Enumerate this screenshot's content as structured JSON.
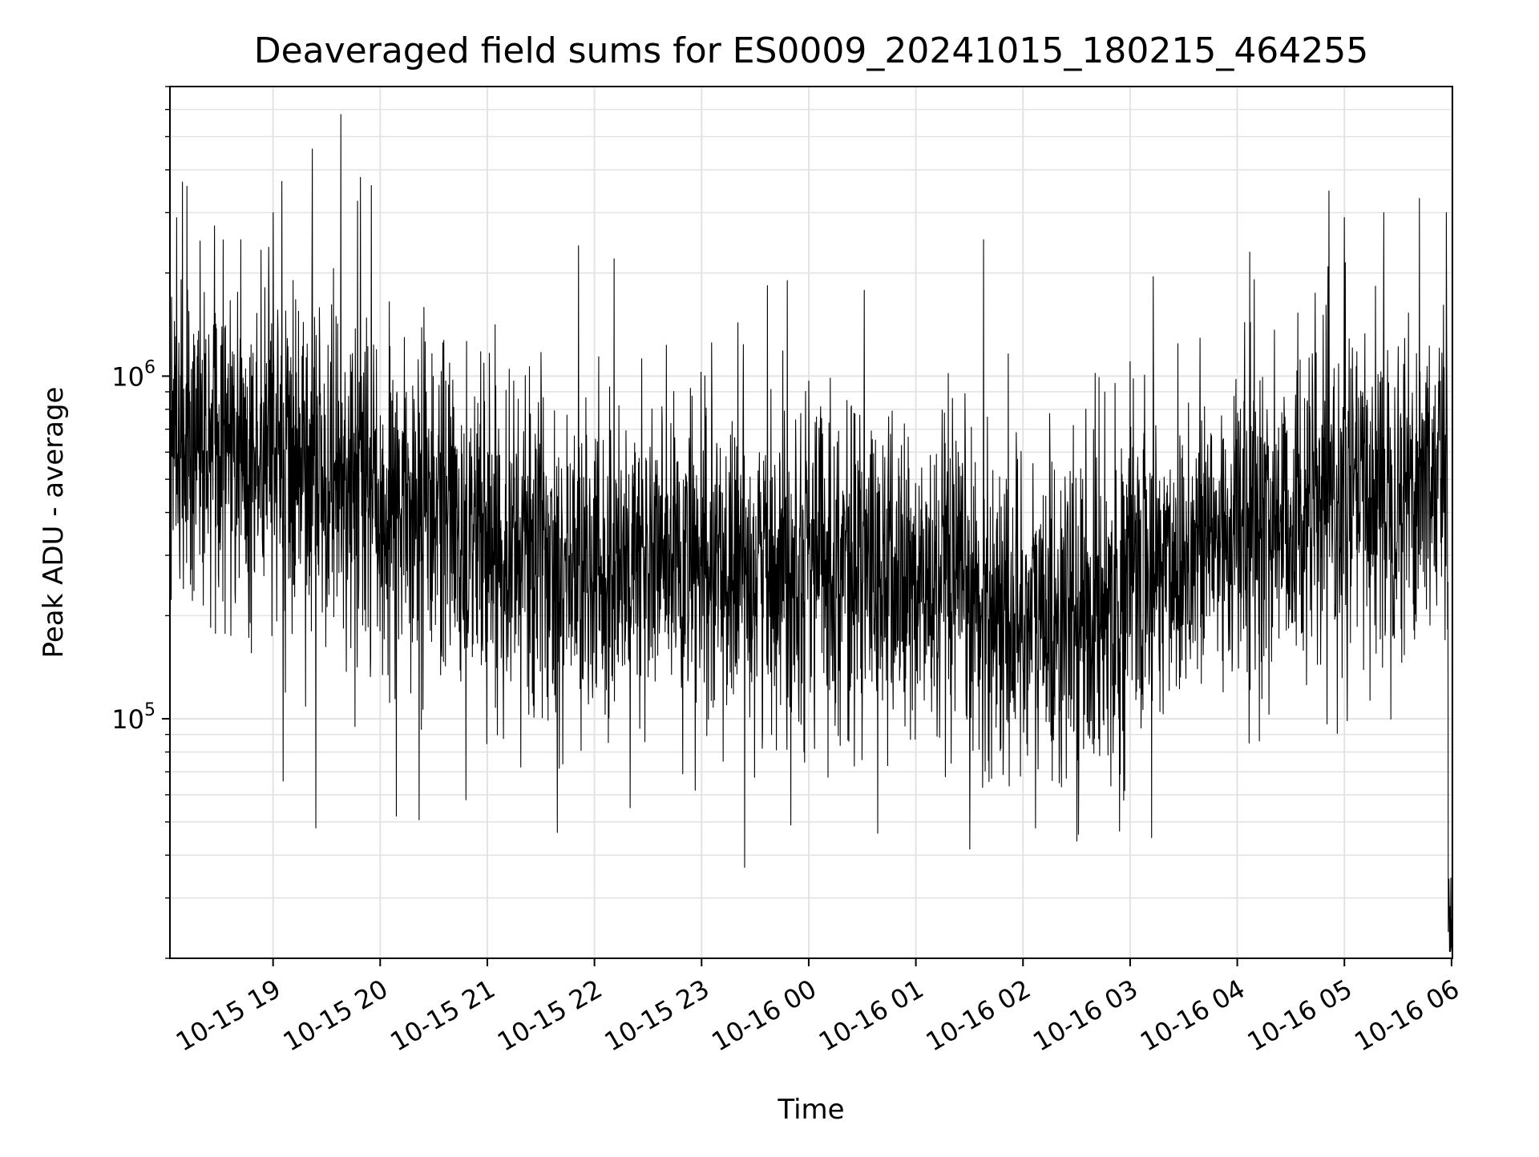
{
  "chart_data": {
    "type": "line",
    "title": "Deaveraged field sums for ES0009_20241015_180215_464255",
    "xlabel": "Time",
    "ylabel": "Peak ADU - average",
    "x_axis": {
      "kind": "datetime",
      "min": "2024-10-15T18:02:15",
      "max": "2024-10-16T06:00:30",
      "ticks": [
        {
          "value": "2024-10-15T19:00:00",
          "label": "10-15 19"
        },
        {
          "value": "2024-10-15T20:00:00",
          "label": "10-15 20"
        },
        {
          "value": "2024-10-15T21:00:00",
          "label": "10-15 21"
        },
        {
          "value": "2024-10-15T22:00:00",
          "label": "10-15 22"
        },
        {
          "value": "2024-10-15T23:00:00",
          "label": "10-15 23"
        },
        {
          "value": "2024-10-16T00:00:00",
          "label": "10-16 00"
        },
        {
          "value": "2024-10-16T01:00:00",
          "label": "10-16 01"
        },
        {
          "value": "2024-10-16T02:00:00",
          "label": "10-16 02"
        },
        {
          "value": "2024-10-16T03:00:00",
          "label": "10-16 03"
        },
        {
          "value": "2024-10-16T04:00:00",
          "label": "10-16 04"
        },
        {
          "value": "2024-10-16T05:00:00",
          "label": "10-16 05"
        },
        {
          "value": "2024-10-16T06:00:00",
          "label": "10-16 06"
        }
      ]
    },
    "y_axis": {
      "scale": "log",
      "min": 20000,
      "max": 7000000,
      "ticks": [
        {
          "value": 100000,
          "base": "10",
          "exp": "5"
        },
        {
          "value": 1000000,
          "base": "10",
          "exp": "6"
        }
      ]
    },
    "grid": true,
    "line_color": "#000000",
    "series": [
      {
        "trend": [
          [
            "2024-10-15T18:02:15",
            700000
          ],
          [
            "2024-10-15T18:30:00",
            620000
          ],
          [
            "2024-10-15T19:00:00",
            560000
          ],
          [
            "2024-10-15T19:30:00",
            520000
          ],
          [
            "2024-10-15T20:00:00",
            420000
          ],
          [
            "2024-10-15T21:00:00",
            350000
          ],
          [
            "2024-10-15T22:00:00",
            260000
          ],
          [
            "2024-10-15T22:30:00",
            300000
          ],
          [
            "2024-10-15T23:00:00",
            260000
          ],
          [
            "2024-10-16T00:00:00",
            310000
          ],
          [
            "2024-10-16T01:00:00",
            240000
          ],
          [
            "2024-10-16T02:00:00",
            200000
          ],
          [
            "2024-10-16T02:30:00",
            190000
          ],
          [
            "2024-10-16T03:00:00",
            260000
          ],
          [
            "2024-10-16T04:00:00",
            360000
          ],
          [
            "2024-10-16T05:00:00",
            430000
          ],
          [
            "2024-10-16T05:50:00",
            520000
          ]
        ],
        "spikes": [
          [
            "2024-10-15T18:06:00",
            2900000
          ],
          [
            "2024-10-15T18:42:00",
            2500000
          ],
          [
            "2024-10-15T19:00:00",
            3000000
          ],
          [
            "2024-10-15T19:05:00",
            3700000
          ],
          [
            "2024-10-15T19:22:00",
            4600000
          ],
          [
            "2024-10-15T19:24:00",
            48000
          ],
          [
            "2024-10-15T19:38:00",
            5800000
          ],
          [
            "2024-10-15T19:49:00",
            3800000
          ],
          [
            "2024-10-15T19:55:00",
            3600000
          ],
          [
            "2024-10-15T20:09:00",
            52000
          ],
          [
            "2024-10-15T20:48:00",
            58000
          ],
          [
            "2024-10-15T21:51:00",
            2400000
          ],
          [
            "2024-10-15T22:20:00",
            55000
          ],
          [
            "2024-10-15T22:11:00",
            2200000
          ],
          [
            "2024-10-15T23:50:00",
            49000
          ],
          [
            "2024-10-15T23:48:00",
            1900000
          ],
          [
            "2024-10-16T01:38:00",
            2500000
          ],
          [
            "2024-10-16T02:07:00",
            48000
          ],
          [
            "2024-10-16T02:31:00",
            46000
          ],
          [
            "2024-10-16T02:54:00",
            47000
          ],
          [
            "2024-10-16T03:13:00",
            1950000
          ],
          [
            "2024-10-16T03:12:00",
            45000
          ],
          [
            "2024-10-16T04:07:00",
            2300000
          ],
          [
            "2024-10-16T05:00:00",
            2900000
          ],
          [
            "2024-10-16T05:22:00",
            3000000
          ],
          [
            "2024-10-16T05:42:00",
            3300000
          ],
          [
            "2024-10-16T05:57:00",
            3000000
          ],
          [
            "2024-10-16T06:00:00",
            26000
          ]
        ]
      }
    ]
  }
}
